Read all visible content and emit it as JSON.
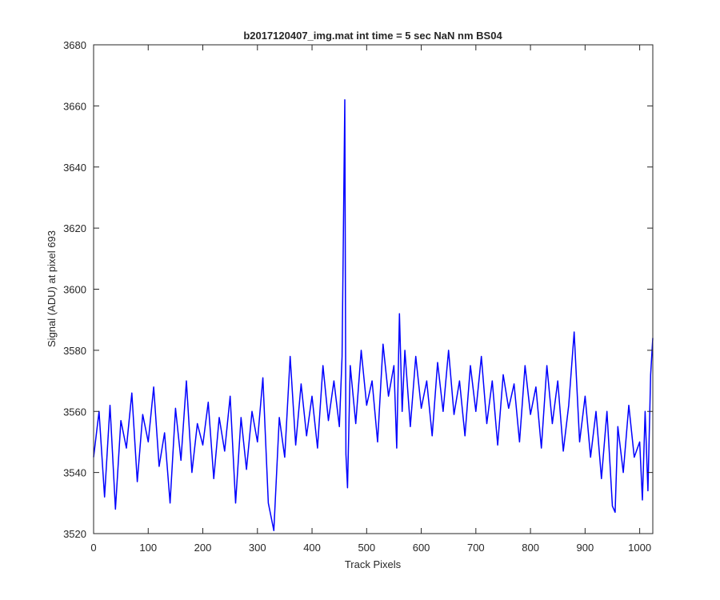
{
  "chart_data": {
    "type": "line",
    "title": "b2017120407_img.mat int time = 5 sec  NaN nm BS04",
    "xlabel": "Track Pixels",
    "ylabel": "Signal (ADU) at pixel 693",
    "xlim": [
      0,
      1024
    ],
    "ylim": [
      3520,
      3680
    ],
    "xticks": [
      0,
      100,
      200,
      300,
      400,
      500,
      600,
      700,
      800,
      900,
      1000
    ],
    "yticks": [
      3520,
      3540,
      3560,
      3580,
      3600,
      3620,
      3640,
      3660,
      3680
    ],
    "grid": false,
    "legend": "none",
    "line_color": "#0000ff",
    "series": [
      {
        "x": [
          0,
          10,
          20,
          30,
          40,
          50,
          60,
          70,
          80,
          90,
          100,
          110,
          120,
          130,
          140,
          150,
          160,
          170,
          180,
          190,
          200,
          210,
          220,
          230,
          240,
          250,
          260,
          270,
          280,
          290,
          300,
          310,
          320,
          330,
          340,
          350,
          360,
          370,
          380,
          390,
          400,
          410,
          420,
          430,
          440,
          450,
          455,
          460,
          462,
          465,
          470,
          480,
          490,
          500,
          510,
          520,
          530,
          540,
          550,
          555,
          560,
          565,
          570,
          580,
          590,
          600,
          610,
          620,
          630,
          640,
          650,
          660,
          670,
          680,
          690,
          700,
          710,
          720,
          730,
          740,
          750,
          760,
          770,
          780,
          790,
          800,
          810,
          820,
          830,
          840,
          850,
          860,
          870,
          880,
          890,
          900,
          910,
          920,
          930,
          940,
          950,
          955,
          960,
          970,
          980,
          990,
          1000,
          1005,
          1010,
          1015,
          1020,
          1024
        ],
        "y": [
          3545,
          3560,
          3532,
          3562,
          3528,
          3557,
          3548,
          3566,
          3537,
          3559,
          3550,
          3568,
          3542,
          3553,
          3530,
          3561,
          3544,
          3570,
          3540,
          3556,
          3549,
          3563,
          3538,
          3558,
          3547,
          3565,
          3530,
          3558,
          3541,
          3560,
          3550,
          3571,
          3530,
          3521,
          3558,
          3545,
          3578,
          3549,
          3569,
          3552,
          3565,
          3548,
          3575,
          3557,
          3570,
          3555,
          3578,
          3662,
          3546,
          3535,
          3575,
          3556,
          3580,
          3562,
          3570,
          3550,
          3582,
          3565,
          3575,
          3548,
          3592,
          3560,
          3580,
          3555,
          3578,
          3561,
          3570,
          3552,
          3576,
          3560,
          3580,
          3559,
          3570,
          3552,
          3575,
          3560,
          3578,
          3556,
          3570,
          3549,
          3572,
          3561,
          3569,
          3550,
          3575,
          3559,
          3568,
          3548,
          3575,
          3556,
          3570,
          3547,
          3562,
          3586,
          3550,
          3565,
          3545,
          3560,
          3538,
          3560,
          3529,
          3527,
          3555,
          3540,
          3562,
          3545,
          3550,
          3531,
          3560,
          3534,
          3572,
          3584
        ]
      }
    ]
  }
}
